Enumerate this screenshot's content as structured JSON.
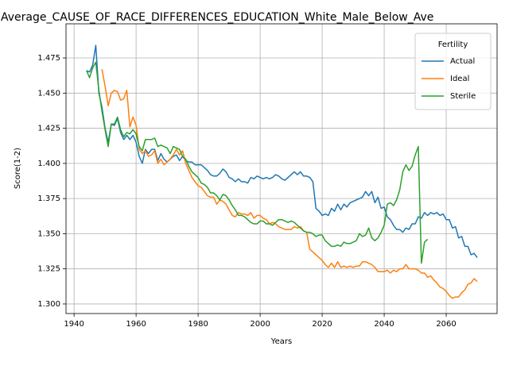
{
  "chart_data": {
    "type": "line",
    "title": "Average_CAUSE_OF_RACE_DIFFERENCES_EDUCATION_White_Male_Below_Ave",
    "xlabel": "Years",
    "ylabel": "Score(1-2)",
    "x": [
      1944,
      1945,
      1946,
      1947,
      1948,
      1949,
      1950,
      1951,
      1952,
      1953,
      1954,
      1955,
      1956,
      1957,
      1958,
      1959,
      1960,
      1961,
      1962,
      1963,
      1964,
      1965,
      1966,
      1967,
      1968,
      1969,
      1970,
      1971,
      1972,
      1973,
      1974,
      1975,
      1976,
      1977,
      1978,
      1979,
      1980,
      1981,
      1982,
      1983,
      1984,
      1985,
      1986,
      1987,
      1988,
      1989,
      1990,
      1991,
      1992,
      1993,
      1994,
      1995,
      1996,
      1997,
      1998,
      1999,
      2000,
      2001,
      2002,
      2003,
      2004,
      2005,
      2006,
      2007,
      2008,
      2009,
      2010,
      2011,
      2012,
      2013,
      2014,
      2015,
      2016,
      2017,
      2018,
      2019,
      2020,
      2021,
      2022,
      2023,
      2024,
      2025,
      2026,
      2027,
      2028,
      2029,
      2030,
      2031,
      2032,
      2033,
      2034,
      2035,
      2036,
      2037,
      2038,
      2039,
      2040,
      2041,
      2042,
      2043,
      2044,
      2045,
      2046,
      2047,
      2048,
      2049,
      2050,
      2051,
      2052,
      2053,
      2054,
      2055,
      2056,
      2057,
      2058,
      2059,
      2060,
      2061,
      2062,
      2063,
      2064,
      2065,
      2066,
      2067,
      2068,
      2069,
      2070
    ],
    "series": [
      {
        "name": "Actual",
        "color": "#1f77b4",
        "values": [
          1.466,
          1.465,
          1.47,
          1.484,
          1.45,
          1.44,
          1.425,
          1.415,
          1.428,
          1.427,
          1.432,
          1.422,
          1.417,
          1.42,
          1.417,
          1.42,
          1.415,
          1.405,
          1.4,
          1.41,
          1.407,
          1.41,
          1.41,
          1.402,
          1.407,
          1.403,
          1.401,
          1.403,
          1.405,
          1.406,
          1.402,
          1.405,
          1.402,
          1.401,
          1.401,
          1.399,
          1.399,
          1.399,
          1.397,
          1.395,
          1.392,
          1.391,
          1.391,
          1.393,
          1.396,
          1.394,
          1.39,
          1.389,
          1.387,
          1.389,
          1.387,
          1.387,
          1.386,
          1.39,
          1.389,
          1.391,
          1.39,
          1.389,
          1.39,
          1.389,
          1.39,
          1.392,
          1.391,
          1.389,
          1.388,
          1.39,
          1.392,
          1.394,
          1.392,
          1.394,
          1.391,
          1.391,
          1.39,
          1.387,
          1.368,
          1.366,
          1.363,
          1.364,
          1.363,
          1.368,
          1.366,
          1.371,
          1.367,
          1.371,
          1.369,
          1.372,
          1.373,
          1.374,
          1.375,
          1.376,
          1.38,
          1.377,
          1.38,
          1.372,
          1.376,
          1.368,
          1.369,
          1.362,
          1.36,
          1.356,
          1.353,
          1.353,
          1.351,
          1.354,
          1.353,
          1.357,
          1.357,
          1.362,
          1.361,
          1.365,
          1.363,
          1.365,
          1.364,
          1.365,
          1.363,
          1.364,
          1.36,
          1.36,
          1.354,
          1.355,
          1.347,
          1.348,
          1.341,
          1.341,
          1.335,
          1.336,
          1.333
        ]
      },
      {
        "name": "Ideal",
        "color": "#ff7f0e",
        "values": [
          null,
          null,
          null,
          null,
          null,
          1.467,
          1.455,
          1.441,
          1.45,
          1.452,
          1.451,
          1.445,
          1.446,
          1.452,
          1.426,
          1.433,
          1.427,
          1.41,
          1.407,
          1.409,
          1.405,
          1.406,
          1.409,
          1.4,
          1.403,
          1.399,
          1.401,
          1.403,
          1.406,
          1.41,
          1.406,
          1.409,
          1.4,
          1.395,
          1.39,
          1.387,
          1.384,
          1.383,
          1.38,
          1.377,
          1.376,
          1.376,
          1.371,
          1.374,
          1.373,
          1.371,
          1.367,
          1.363,
          1.362,
          1.365,
          1.364,
          1.364,
          1.363,
          1.365,
          1.361,
          1.363,
          1.363,
          1.361,
          1.36,
          1.357,
          1.358,
          1.357,
          1.355,
          1.354,
          1.353,
          1.353,
          1.353,
          1.355,
          1.354,
          1.355,
          1.352,
          1.351,
          1.339,
          1.337,
          1.335,
          1.333,
          1.331,
          1.328,
          1.326,
          1.329,
          1.326,
          1.33,
          1.326,
          1.327,
          1.326,
          1.327,
          1.326,
          1.327,
          1.327,
          1.33,
          1.33,
          1.329,
          1.328,
          1.326,
          1.323,
          1.323,
          1.323,
          1.324,
          1.322,
          1.324,
          1.323,
          1.325,
          1.325,
          1.328,
          1.325,
          1.325,
          1.325,
          1.324,
          1.322,
          1.322,
          1.319,
          1.32,
          1.317,
          1.315,
          1.312,
          1.311,
          1.309,
          1.306,
          1.304,
          1.305,
          1.305,
          1.308,
          1.31,
          1.314,
          1.315,
          1.318,
          1.316
        ]
      },
      {
        "name": "Sterile",
        "color": "#2ca02c",
        "values": [
          1.466,
          1.461,
          1.468,
          1.472,
          1.452,
          1.437,
          1.424,
          1.412,
          1.428,
          1.428,
          1.433,
          1.424,
          1.419,
          1.422,
          1.421,
          1.424,
          1.421,
          1.412,
          1.409,
          1.417,
          1.417,
          1.417,
          1.418,
          1.412,
          1.413,
          1.412,
          1.411,
          1.407,
          1.412,
          1.411,
          1.41,
          1.405,
          1.403,
          1.398,
          1.394,
          1.392,
          1.39,
          1.386,
          1.385,
          1.383,
          1.379,
          1.379,
          1.377,
          1.374,
          1.378,
          1.377,
          1.374,
          1.37,
          1.367,
          1.363,
          1.363,
          1.362,
          1.36,
          1.358,
          1.357,
          1.357,
          1.359,
          1.359,
          1.357,
          1.357,
          1.356,
          1.358,
          1.36,
          1.36,
          1.359,
          1.358,
          1.359,
          1.358,
          1.356,
          1.354,
          1.352,
          1.351,
          1.351,
          1.35,
          1.348,
          1.349,
          1.349,
          1.345,
          1.343,
          1.341,
          1.341,
          1.342,
          1.341,
          1.344,
          1.343,
          1.343,
          1.344,
          1.345,
          1.35,
          1.348,
          1.349,
          1.354,
          1.347,
          1.345,
          1.347,
          1.351,
          1.356,
          1.371,
          1.372,
          1.37,
          1.374,
          1.381,
          1.394,
          1.399,
          1.395,
          1.398,
          1.406,
          1.412,
          1.329,
          1.344,
          1.346,
          null,
          null,
          null,
          null,
          null,
          null,
          null,
          null,
          null,
          null,
          null,
          null,
          null,
          null,
          null,
          null
        ]
      }
    ],
    "xlim": [
      1937.4,
      2076.4
    ],
    "ylim": [
      1.2932,
      1.4993
    ],
    "xticks": [
      1940,
      1960,
      1980,
      2000,
      2020,
      2040,
      2060
    ],
    "yticks": [
      {
        "value": 1.3,
        "label": "1.300"
      },
      1.325,
      {
        "value": 1.35,
        "label": "1.350"
      },
      1.375,
      {
        "value": 1.4,
        "label": "1.400"
      },
      1.425,
      {
        "value": 1.45,
        "label": "1.450"
      },
      1.475
    ],
    "grid": true,
    "legend_title": "Fertility",
    "legend_loc": "upper right"
  }
}
